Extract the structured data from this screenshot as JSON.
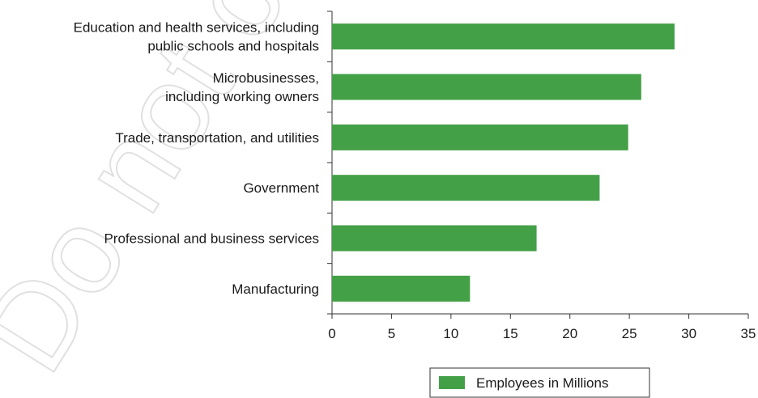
{
  "chart_data": {
    "type": "bar",
    "orientation": "horizontal",
    "categories": [
      [
        "Education and health services, including",
        "public schools and hospitals"
      ],
      [
        "Microbusinesses,",
        "including working owners"
      ],
      [
        "Trade, transportation, and utilities"
      ],
      [
        "Government"
      ],
      [
        "Professional and business services"
      ],
      [
        "Manufacturing"
      ]
    ],
    "series": [
      {
        "name": "Employees in Millions",
        "values": [
          28.8,
          26.0,
          24.9,
          22.5,
          17.2,
          11.6
        ]
      }
    ],
    "xlim": [
      0,
      35
    ],
    "xticks": [
      "0",
      "5",
      "10",
      "15",
      "20",
      "25",
      "30",
      "35"
    ],
    "grid": false,
    "legend_position": "bottom-right",
    "bar_color": "#43a047"
  },
  "watermark": "Do not copy, post"
}
